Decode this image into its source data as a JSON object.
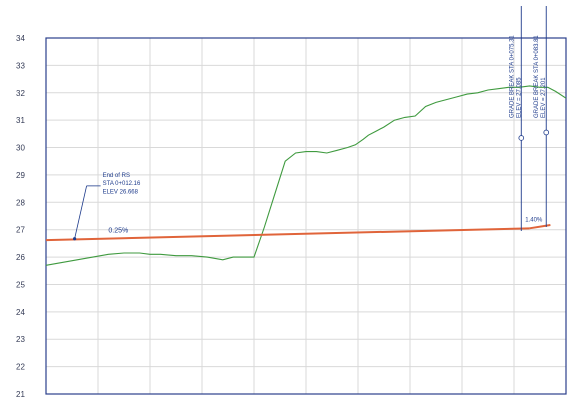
{
  "chart_data": {
    "type": "line",
    "title": "",
    "xlabel": "",
    "ylabel": "",
    "ylim": [
      21,
      34
    ],
    "xlim": [
      0,
      100
    ],
    "y_ticks": [
      "21",
      "22",
      "23",
      "24",
      "25",
      "26",
      "27",
      "28",
      "29",
      "30",
      "31",
      "32",
      "33",
      "34"
    ],
    "grid": true,
    "legend": "none",
    "colors": {
      "ground": "#3f9a3f",
      "grade": "#e0643a",
      "annotation": "#1f3c8c",
      "grid": "#d9d9d9",
      "axis": "#2b3f8c"
    },
    "series": [
      {
        "x": [
          0,
          3,
          6,
          9,
          12,
          15,
          18,
          20,
          22,
          25,
          28,
          31,
          34,
          36,
          38,
          40,
          42,
          44,
          46,
          48,
          50,
          52,
          54,
          56,
          58,
          59.5,
          61,
          62,
          63.5,
          65,
          67,
          69,
          71,
          73,
          75,
          77,
          79,
          81,
          83,
          85,
          87,
          89,
          91,
          93,
          95,
          96.5,
          98,
          100
        ],
        "values": [
          25.7,
          25.8,
          25.9,
          26.0,
          26.1,
          26.15,
          26.15,
          26.1,
          26.1,
          26.05,
          26.05,
          26.0,
          25.9,
          26.0,
          26.0,
          26.0,
          27.1,
          28.3,
          29.5,
          29.8,
          29.85,
          29.85,
          29.8,
          29.9,
          30.0,
          30.1,
          30.3,
          30.45,
          30.6,
          30.75,
          31.0,
          31.1,
          31.15,
          31.5,
          31.65,
          31.75,
          31.85,
          31.95,
          32.0,
          32.1,
          32.15,
          32.2,
          32.2,
          32.25,
          32.2,
          32.2,
          32.05,
          31.8
        ]
      },
      {
        "x": [
          0,
          93
        ],
        "values": [
          26.62,
          27.05
        ]
      }
    ],
    "annotations": {
      "end_of": {
        "line1": "End of RS",
        "line2": "STA 0+012.16",
        "line3": "ELEV 26.668"
      },
      "grade_label": "0.25%",
      "grade_label2": "1.40%",
      "break1": {
        "line1": "GRADE BREAK STA 0+075.31",
        "line2": "ELEV = 27.085"
      },
      "break2": {
        "line1": "GRADE BREAK STA 0+083.81",
        "line2": "ELEV = 27.201"
      }
    }
  }
}
